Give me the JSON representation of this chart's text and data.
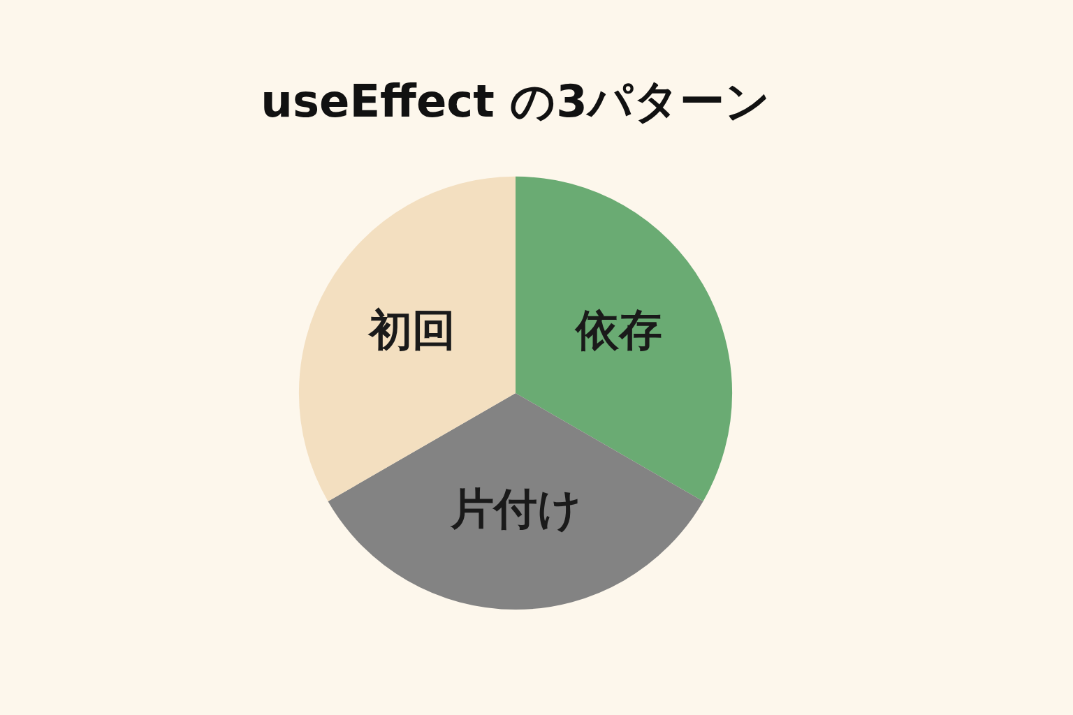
{
  "chart_data": {
    "type": "pie",
    "title": "useEffect の3パターン",
    "categories": [
      "依存",
      "片付け",
      "初回"
    ],
    "values": [
      33.33,
      33.33,
      33.34
    ],
    "colors": [
      "#6aab73",
      "#838383",
      "#f3dfc0"
    ]
  }
}
